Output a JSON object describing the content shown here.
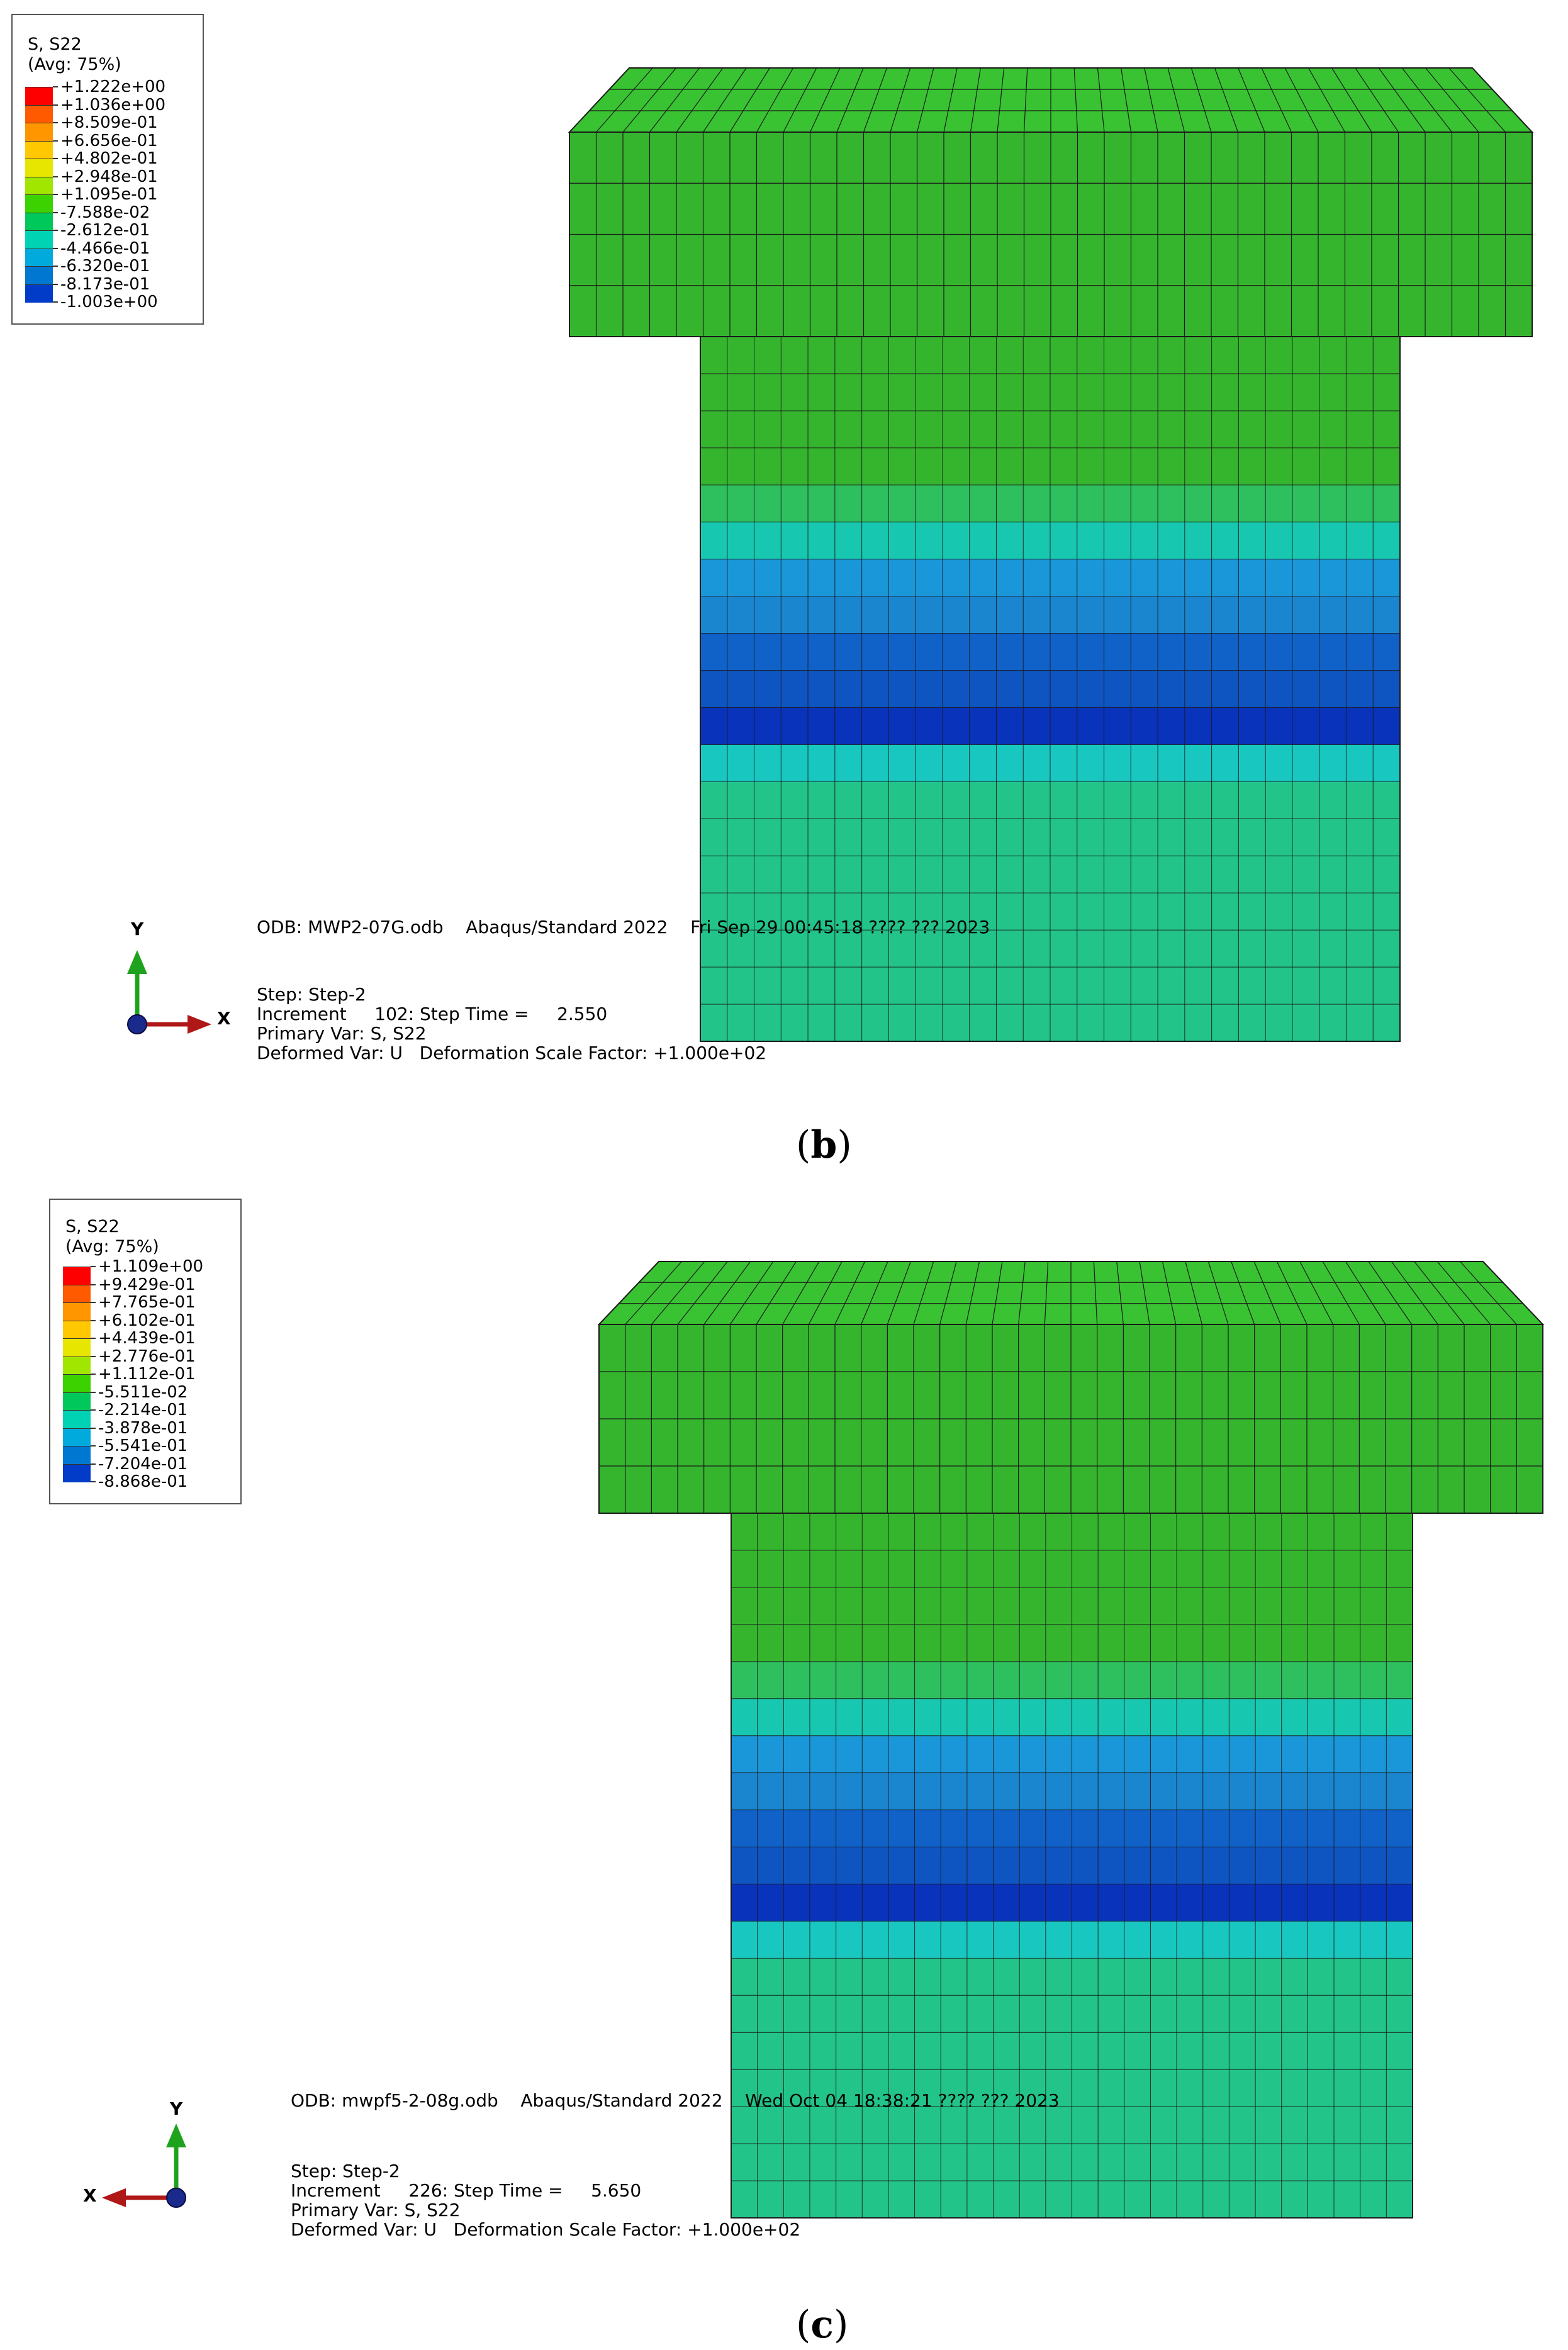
{
  "panels": [
    {
      "id": "b",
      "caption_letter": "b",
      "legend": {
        "title_line1": "S, S22",
        "title_line2": "(Avg: 75%)",
        "values": [
          "+1.222e+00",
          "+1.036e+00",
          "+8.509e-01",
          "+6.656e-01",
          "+4.802e-01",
          "+2.948e-01",
          "+1.095e-01",
          "-7.588e-02",
          "-2.612e-01",
          "-4.466e-01",
          "-6.320e-01",
          "-8.173e-01",
          "-1.003e+00"
        ],
        "colors": [
          "#ff0000",
          "#ff5a00",
          "#ff9600",
          "#ffc800",
          "#e6e600",
          "#a0e600",
          "#3cd200",
          "#00c85a",
          "#00d2b4",
          "#00aadc",
          "#0078d2",
          "#003cc8",
          "#0000c8"
        ]
      },
      "info": {
        "odb_line": "ODB: MWP2-07G.odb    Abaqus/Standard 2022    Fri Sep 29 00:45:18 ???? ??? 2023",
        "step_line": "Step: Step-2",
        "increment_line": "Increment     102: Step Time =     2.550",
        "primary_line": "Primary Var: S, S22",
        "deformed_line": "Deformed Var: U   Deformation Scale Factor: +1.000e+02"
      },
      "axis": {
        "x_label": "X",
        "y_label": "Y",
        "x_direction": "right"
      },
      "mesh_bands": [
        "#35b52e",
        "#35b52e",
        "#35b52e",
        "#35b52e",
        "#2ebf5e",
        "#18c7b0",
        "#1a97d9",
        "#1a86cf",
        "#1062c8",
        "#0f55c2",
        "#0a33bb",
        "#18c7c0",
        "#22c48a",
        "#22c48a",
        "#22c48a",
        "#22c48a",
        "#22c48a",
        "#22c48a",
        "#22c48a"
      ],
      "cap_color": "#35b52e"
    },
    {
      "id": "c",
      "caption_letter": "c",
      "legend": {
        "title_line1": "S, S22",
        "title_line2": "(Avg: 75%)",
        "values": [
          "+1.109e+00",
          "+9.429e-01",
          "+7.765e-01",
          "+6.102e-01",
          "+4.439e-01",
          "+2.776e-01",
          "+1.112e-01",
          "-5.511e-02",
          "-2.214e-01",
          "-3.878e-01",
          "-5.541e-01",
          "-7.204e-01",
          "-8.868e-01"
        ],
        "colors": [
          "#ff0000",
          "#ff5a00",
          "#ff9600",
          "#ffc800",
          "#e6e600",
          "#a0e600",
          "#3cd200",
          "#00c85a",
          "#00d2b4",
          "#00aadc",
          "#0078d2",
          "#003cc8",
          "#0000c8"
        ]
      },
      "info": {
        "odb_line": "ODB: mwpf5-2-08g.odb    Abaqus/Standard 2022    Wed Oct 04 18:38:21 ???? ??? 2023",
        "step_line": "Step: Step-2",
        "increment_line": "Increment     226: Step Time =     5.650",
        "primary_line": "Primary Var: S, S22",
        "deformed_line": "Deformed Var: U   Deformation Scale Factor: +1.000e+02"
      },
      "axis": {
        "x_label": "X",
        "y_label": "Y",
        "x_direction": "left"
      },
      "mesh_bands": [
        "#35b52e",
        "#35b52e",
        "#35b52e",
        "#35b52e",
        "#2ebf5e",
        "#18c7b0",
        "#1a97d9",
        "#1a86cf",
        "#1062c8",
        "#0f55c2",
        "#0a33bb",
        "#18c7c0",
        "#22c48a",
        "#22c48a",
        "#22c48a",
        "#22c48a",
        "#22c48a",
        "#22c48a",
        "#22c48a"
      ],
      "cap_color": "#35b52e"
    }
  ]
}
